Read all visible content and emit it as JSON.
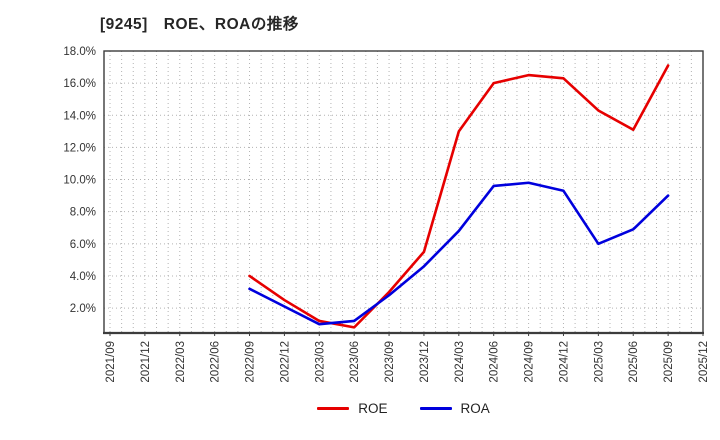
{
  "chart_data": {
    "type": "line",
    "title": "[9245]　ROE、ROAの推移",
    "xlabel": "",
    "ylabel": "",
    "categories": [
      "2021/09",
      "2021/12",
      "2022/03",
      "2022/06",
      "2022/09",
      "2022/12",
      "2023/03",
      "2023/06",
      "2023/09",
      "2023/12",
      "2024/03",
      "2024/06",
      "2024/09",
      "2024/12",
      "2025/03",
      "2025/06",
      "2025/09",
      "2025/12"
    ],
    "series": [
      {
        "name": "ROE",
        "color": "#e60000",
        "values": [
          null,
          null,
          null,
          null,
          4.0,
          2.5,
          1.2,
          0.8,
          3.0,
          5.5,
          13.0,
          16.0,
          16.5,
          16.3,
          14.3,
          13.1,
          17.1,
          null
        ]
      },
      {
        "name": "ROA",
        "color": "#0000dd",
        "values": [
          null,
          null,
          null,
          null,
          3.2,
          2.1,
          1.0,
          1.2,
          2.8,
          4.6,
          6.8,
          9.6,
          9.8,
          9.3,
          6.0,
          6.9,
          9.0,
          null
        ]
      }
    ],
    "y_ticks": [
      {
        "value": 18,
        "label": "18.0%"
      },
      {
        "value": 16,
        "label": "16.0%"
      },
      {
        "value": 14,
        "label": "14.0%"
      },
      {
        "value": 12,
        "label": "12.0%"
      },
      {
        "value": 10,
        "label": "10.0%"
      },
      {
        "value": 8,
        "label": "8.0%"
      },
      {
        "value": 6,
        "label": "6.0%"
      },
      {
        "value": 4,
        "label": "4.0%"
      },
      {
        "value": 2,
        "label": "2.0%"
      }
    ],
    "ylim": [
      0.45,
      18.0
    ],
    "grid": "dotted gray, monthly vertical lines, horizontal every 2%",
    "legend_position": "bottom-center",
    "colors": {
      "grid": "#b3b3b3",
      "border": "#3c3c3c",
      "text": "#333333"
    }
  }
}
